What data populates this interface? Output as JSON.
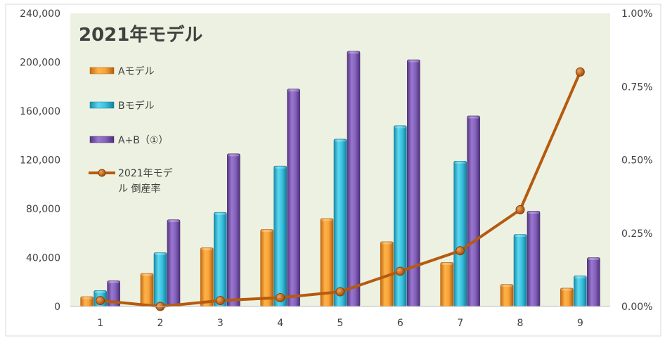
{
  "colors": {
    "plot_bg": "#EDF1E1",
    "frame": "#BFBFBF",
    "a_series": "#F39C2A",
    "b_series": "#2EB8D6",
    "ab_series": "#7B55B2",
    "line": "#B55A0E",
    "text": "#404040",
    "title": "#404040"
  },
  "chart_data": {
    "type": "bar",
    "title": "2021年モデル",
    "categories": [
      "1",
      "2",
      "3",
      "4",
      "5",
      "6",
      "7",
      "8",
      "9"
    ],
    "series": [
      {
        "name": "Aモデル",
        "type": "bar",
        "axis": "left",
        "values": [
          8000,
          27000,
          48000,
          63000,
          72000,
          53000,
          36000,
          18000,
          15000
        ]
      },
      {
        "name": "Bモデル",
        "type": "bar",
        "axis": "left",
        "values": [
          13000,
          44000,
          77000,
          115000,
          137000,
          148000,
          119000,
          59000,
          25000
        ]
      },
      {
        "name": "A+B（①）",
        "type": "bar",
        "axis": "left",
        "values": [
          21000,
          71000,
          125000,
          178000,
          209000,
          202000,
          156000,
          78000,
          40000
        ]
      },
      {
        "name": "2021年モデル 倒産率",
        "type": "line",
        "axis": "right",
        "values": [
          0.0002,
          0.0,
          0.0002,
          0.0003,
          0.0005,
          0.0012,
          0.0019,
          0.0033,
          0.008
        ]
      }
    ],
    "left_axis": {
      "ylim": [
        0,
        240000
      ],
      "ticks": [
        0,
        40000,
        80000,
        120000,
        160000,
        200000,
        240000
      ],
      "tick_labels": [
        "0",
        "40,000",
        "80,000",
        "120,000",
        "160,000",
        "200,000",
        "240,000"
      ]
    },
    "right_axis": {
      "ylim": [
        0,
        0.01
      ],
      "ticks": [
        0,
        0.0025,
        0.005,
        0.0075,
        0.01
      ],
      "tick_labels": [
        "0.00%",
        "0.25%",
        "0.50%",
        "0.75%",
        "1.00%"
      ]
    },
    "grid": false,
    "legend_position": "left"
  },
  "legend_line_label": [
    "2021年モデ",
    "ル 倒産率"
  ]
}
